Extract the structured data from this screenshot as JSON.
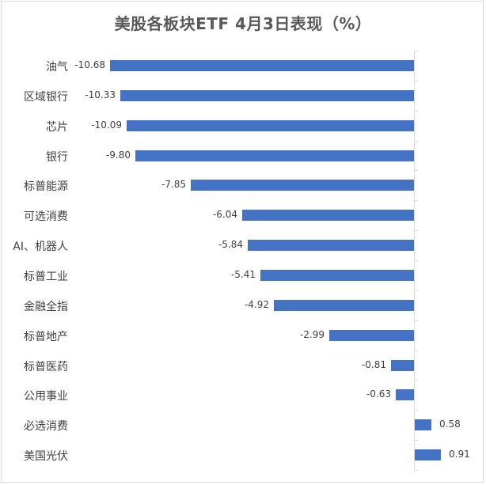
{
  "chart_data": {
    "type": "bar",
    "orientation": "horizontal",
    "title": "美股各板块ETF 4月3日表现（%）",
    "xlabel": "",
    "ylabel": "",
    "categories": [
      "油气",
      "区域银行",
      "芯片",
      "银行",
      "标普能源",
      "可选消费",
      "AI、机器人",
      "标普工业",
      "金融全指",
      "标普地产",
      "标普医药",
      "公用事业",
      "必选消费",
      "美国光伏"
    ],
    "values": [
      -10.68,
      -10.33,
      -10.09,
      -9.8,
      -7.85,
      -6.04,
      -5.84,
      -5.41,
      -4.92,
      -2.99,
      -0.81,
      -0.63,
      0.58,
      0.91
    ],
    "value_labels": [
      "-10.68",
      "-10.33",
      "-10.09",
      "-9.80",
      "-7.85",
      "-6.04",
      "-5.84",
      "-5.41",
      "-4.92",
      "-2.99",
      "-0.81",
      "-0.63",
      "0.58",
      "0.91"
    ],
    "xlim": [
      -10.68,
      2.5
    ],
    "grid": false,
    "legend": null,
    "bar_color": "#4472C4",
    "data_labels": true
  }
}
